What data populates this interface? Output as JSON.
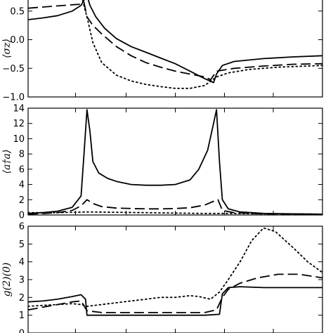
{
  "chart_data": [
    {
      "type": "line",
      "ylabel": "⟨σz⟩",
      "ylim": [
        -1.0,
        1.0
      ],
      "xlim": [
        0,
        1
      ],
      "yticks": [
        -1.0,
        -0.5,
        0.0,
        0.5
      ],
      "ytick_labels": [
        "−1.0",
        "−0.5",
        "0.0",
        "0.5"
      ],
      "xticks": [
        0.161,
        0.333,
        0.5,
        0.667,
        0.833
      ],
      "grid": false,
      "series": [
        {
          "style": "solid",
          "x": [
            0,
            0.05,
            0.1,
            0.15,
            0.18,
            0.2,
            0.21,
            0.23,
            0.26,
            0.3,
            0.35,
            0.4,
            0.45,
            0.5,
            0.55,
            0.6,
            0.63,
            0.64,
            0.66,
            0.7,
            0.8,
            0.9,
            1.0
          ],
          "y": [
            0.35,
            0.38,
            0.42,
            0.5,
            0.6,
            0.78,
            0.6,
            0.4,
            0.2,
            0.02,
            -0.12,
            -0.22,
            -0.32,
            -0.42,
            -0.55,
            -0.68,
            -0.75,
            -0.6,
            -0.45,
            -0.38,
            -0.33,
            -0.3,
            -0.28
          ]
        },
        {
          "style": "dashed",
          "x": [
            0,
            0.05,
            0.1,
            0.15,
            0.18,
            0.19,
            0.2,
            0.22,
            0.25,
            0.3,
            0.35,
            0.4,
            0.45,
            0.5,
            0.55,
            0.6,
            0.62,
            0.64,
            0.7,
            0.8,
            0.9,
            1.0
          ],
          "y": [
            0.55,
            0.57,
            0.59,
            0.61,
            0.62,
            0.65,
            0.4,
            0.25,
            0.1,
            -0.12,
            -0.28,
            -0.4,
            -0.48,
            -0.55,
            -0.6,
            -0.65,
            -0.7,
            -0.55,
            -0.5,
            -0.46,
            -0.43,
            -0.42
          ]
        },
        {
          "style": "dotted",
          "x": [
            0,
            0.05,
            0.1,
            0.15,
            0.18,
            0.2,
            0.22,
            0.25,
            0.3,
            0.35,
            0.4,
            0.45,
            0.5,
            0.55,
            0.6,
            0.64,
            0.68,
            0.75,
            0.85,
            1.0
          ],
          "y": [
            0.75,
            0.77,
            0.79,
            0.8,
            0.78,
            0.4,
            -0.05,
            -0.4,
            -0.62,
            -0.72,
            -0.78,
            -0.82,
            -0.85,
            -0.85,
            -0.8,
            -0.65,
            -0.58,
            -0.52,
            -0.48,
            -0.45
          ]
        }
      ]
    },
    {
      "type": "line",
      "ylabel": "⟨a†a⟩",
      "ylim": [
        0,
        14
      ],
      "xlim": [
        0,
        1
      ],
      "yticks": [
        0,
        2,
        4,
        6,
        8,
        10,
        12,
        14
      ],
      "ytick_labels": [
        "0",
        "2",
        "4",
        "6",
        "8",
        "10",
        "12",
        "14"
      ],
      "xticks": [
        0.161,
        0.333,
        0.5,
        0.667,
        0.833
      ],
      "grid": false,
      "series": [
        {
          "style": "solid",
          "x": [
            0,
            0.05,
            0.1,
            0.15,
            0.18,
            0.19,
            0.2,
            0.21,
            0.22,
            0.24,
            0.27,
            0.3,
            0.35,
            0.4,
            0.45,
            0.5,
            0.55,
            0.58,
            0.61,
            0.63,
            0.64,
            0.65,
            0.66,
            0.68,
            0.72,
            0.8,
            0.9,
            1.0
          ],
          "y": [
            0.2,
            0.3,
            0.5,
            1.0,
            2.5,
            8.0,
            13.8,
            11.0,
            7.0,
            5.5,
            4.8,
            4.4,
            4.0,
            3.9,
            3.9,
            4.0,
            4.6,
            6.0,
            8.5,
            12.0,
            13.8,
            7.0,
            2.0,
            0.8,
            0.4,
            0.2,
            0.15,
            0.1
          ]
        },
        {
          "style": "dashed",
          "x": [
            0,
            0.05,
            0.1,
            0.15,
            0.18,
            0.2,
            0.22,
            0.25,
            0.3,
            0.35,
            0.4,
            0.45,
            0.5,
            0.55,
            0.6,
            0.63,
            0.645,
            0.66,
            0.7,
            0.8,
            1.0
          ],
          "y": [
            0.1,
            0.2,
            0.3,
            0.6,
            1.2,
            2.0,
            1.5,
            1.1,
            0.9,
            0.85,
            0.8,
            0.8,
            0.85,
            0.95,
            1.3,
            1.8,
            2.0,
            0.6,
            0.3,
            0.15,
            0.1
          ]
        },
        {
          "style": "dotted",
          "x": [
            0,
            0.1,
            0.2,
            0.3,
            0.4,
            0.5,
            0.6,
            0.7,
            0.8,
            0.9,
            1.0
          ],
          "y": [
            0.3,
            0.3,
            0.4,
            0.35,
            0.3,
            0.25,
            0.2,
            0.2,
            0.15,
            0.15,
            0.1
          ]
        }
      ]
    },
    {
      "type": "line",
      "ylabel": "g(2)(0)",
      "ylim": [
        0,
        6
      ],
      "xlim": [
        0,
        1
      ],
      "yticks": [
        0,
        1,
        2,
        3,
        4,
        5,
        6
      ],
      "ytick_labels": [
        "0",
        "1",
        "2",
        "3",
        "4",
        "5",
        "6"
      ],
      "xticks": [
        0.161,
        0.333,
        0.5,
        0.667,
        0.833
      ],
      "grid": false,
      "series": [
        {
          "style": "solid",
          "x": [
            0,
            0.05,
            0.1,
            0.15,
            0.18,
            0.195,
            0.2,
            0.25,
            0.3,
            0.4,
            0.5,
            0.6,
            0.65,
            0.66,
            0.68,
            0.72,
            0.8,
            0.9,
            1.0
          ],
          "y": [
            1.75,
            1.8,
            1.9,
            2.05,
            2.15,
            1.9,
            1.0,
            1.0,
            1.0,
            1.0,
            1.0,
            1.0,
            1.05,
            2.2,
            2.55,
            2.6,
            2.55,
            2.55,
            2.55
          ]
        },
        {
          "style": "dashed",
          "x": [
            0,
            0.05,
            0.1,
            0.15,
            0.18,
            0.2,
            0.25,
            0.3,
            0.4,
            0.5,
            0.6,
            0.64,
            0.66,
            0.68,
            0.72,
            0.78,
            0.85,
            0.92,
            1.0
          ],
          "y": [
            1.3,
            1.45,
            1.6,
            1.75,
            1.8,
            1.25,
            1.15,
            1.15,
            1.15,
            1.15,
            1.15,
            1.3,
            2.0,
            2.45,
            2.8,
            3.1,
            3.3,
            3.3,
            3.1
          ]
        },
        {
          "style": "dotted",
          "x": [
            0,
            0.05,
            0.1,
            0.15,
            0.18,
            0.2,
            0.25,
            0.3,
            0.35,
            0.4,
            0.45,
            0.5,
            0.55,
            0.58,
            0.62,
            0.65,
            0.68,
            0.72,
            0.76,
            0.8,
            0.84,
            0.9,
            0.95,
            1.0
          ],
          "y": [
            1.5,
            1.55,
            1.6,
            1.65,
            1.6,
            1.5,
            1.6,
            1.7,
            1.8,
            1.9,
            2.0,
            2.0,
            2.1,
            2.05,
            1.9,
            2.3,
            3.0,
            4.0,
            5.2,
            5.9,
            5.7,
            4.8,
            4.0,
            3.4
          ]
        }
      ]
    }
  ]
}
